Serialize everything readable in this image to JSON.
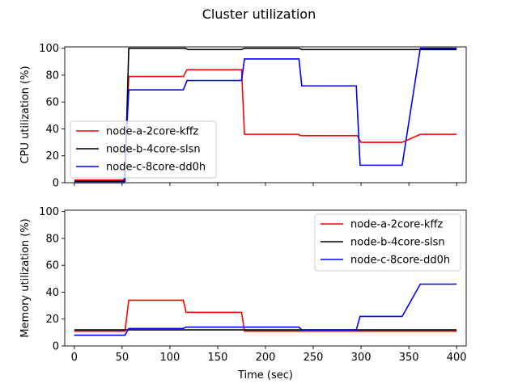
{
  "figure": {
    "title": "Cluster utilization"
  },
  "chart_data": [
    {
      "type": "line",
      "title": "",
      "xlabel": "",
      "ylabel": "CPU utilization (%)",
      "xlim": [
        -10,
        410
      ],
      "ylim": [
        0,
        101
      ],
      "xticks": [
        0,
        50,
        100,
        150,
        200,
        250,
        300,
        350,
        400
      ],
      "yticks": [
        0,
        20,
        40,
        60,
        80,
        100
      ],
      "show_x_tick_labels": false,
      "grid": false,
      "legend": "center-left",
      "series": [
        {
          "name": "node-a-2core-kffz",
          "color": "#ff0000",
          "x": [
            0,
            52,
            57,
            114,
            118,
            175,
            178,
            234,
            237,
            296,
            300,
            343,
            362,
            400
          ],
          "y": [
            2,
            2,
            79,
            79,
            84,
            84,
            36,
            36,
            35,
            35,
            30,
            30,
            36,
            36
          ]
        },
        {
          "name": "node-b-4core-slsn",
          "color": "#000000",
          "x": [
            0,
            53,
            57,
            116,
            119,
            175,
            178,
            235,
            238,
            400
          ],
          "y": [
            1,
            1,
            100,
            100,
            99,
            99,
            100,
            100,
            99,
            99
          ]
        },
        {
          "name": "node-c-8core-dd0h",
          "color": "#0000ff",
          "x": [
            0,
            52,
            57,
            114,
            118,
            175,
            178,
            235,
            238,
            295,
            299,
            343,
            362,
            400
          ],
          "y": [
            0,
            0,
            69,
            69,
            76,
            76,
            92,
            92,
            72,
            72,
            13,
            13,
            100,
            100
          ]
        }
      ]
    },
    {
      "type": "line",
      "title": "",
      "xlabel": "Time (sec)",
      "ylabel": "Memory utilization (%)",
      "xlim": [
        -10,
        410
      ],
      "ylim": [
        0,
        101
      ],
      "xticks": [
        0,
        50,
        100,
        150,
        200,
        250,
        300,
        350,
        400
      ],
      "yticks": [
        0,
        20,
        40,
        60,
        80,
        100
      ],
      "show_x_tick_labels": true,
      "grid": false,
      "legend": "upper-right",
      "series": [
        {
          "name": "node-a-2core-kffz",
          "color": "#ff0000",
          "x": [
            0,
            53,
            57,
            114,
            117,
            175,
            178,
            400
          ],
          "y": [
            11,
            11,
            34,
            34,
            25,
            25,
            11,
            11
          ]
        },
        {
          "name": "node-b-4core-slsn",
          "color": "#000000",
          "x": [
            0,
            400
          ],
          "y": [
            12,
            12
          ]
        },
        {
          "name": "node-c-8core-dd0h",
          "color": "#0000ff",
          "x": [
            0,
            53,
            57,
            114,
            117,
            175,
            178,
            235,
            238,
            295,
            299,
            343,
            362,
            400
          ],
          "y": [
            8,
            8,
            13,
            13,
            14,
            14,
            14,
            14,
            12,
            12,
            22,
            22,
            46,
            46
          ]
        }
      ]
    }
  ]
}
